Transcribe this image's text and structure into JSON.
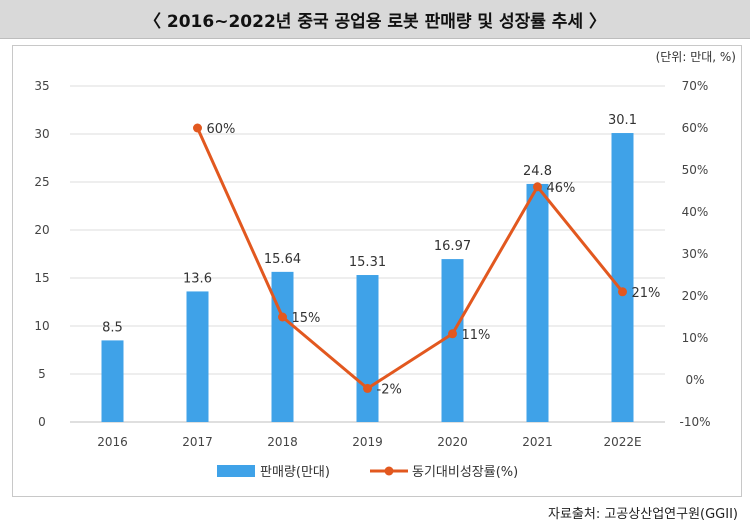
{
  "title": "〈 2016~2022년 중국 공업용 로봇 판매량 및 성장률 추세 〉",
  "unit_note": "(단위: 만대, %)",
  "source": "자료출처: 고공상산업연구원(GGII)",
  "colors": {
    "bar": "#3fa2e8",
    "line": "#e2581f",
    "grid": "#dcdcdc"
  },
  "chart_data": {
    "type": "bar",
    "categories": [
      "2016",
      "2017",
      "2018",
      "2019",
      "2020",
      "2021",
      "2022E"
    ],
    "series": [
      {
        "name": "판매량(만대)",
        "type": "bar",
        "axis": "left",
        "values": [
          8.5,
          13.6,
          15.64,
          15.31,
          16.97,
          24.8,
          30.1
        ],
        "labels": [
          "8.5",
          "13.6",
          "15.64",
          "15.31",
          "16.97",
          "24.8",
          "30.1"
        ]
      },
      {
        "name": "동기대비성장률(%)",
        "type": "line",
        "axis": "right",
        "values": [
          null,
          60,
          15,
          -2,
          11,
          46,
          21
        ],
        "labels": [
          "",
          "60%",
          "15%",
          "-2%",
          "11%",
          "46%",
          "21%"
        ]
      }
    ],
    "left_axis": {
      "min": 0,
      "max": 35,
      "ticks": [
        "0",
        "5",
        "10",
        "15",
        "20",
        "25",
        "30",
        "35"
      ]
    },
    "right_axis": {
      "min": -10,
      "max": 70,
      "ticks": [
        "-10%",
        "0%",
        "10%",
        "20%",
        "30%",
        "40%",
        "50%",
        "60%",
        "70%"
      ]
    },
    "grid": true,
    "legend_position": "bottom"
  }
}
